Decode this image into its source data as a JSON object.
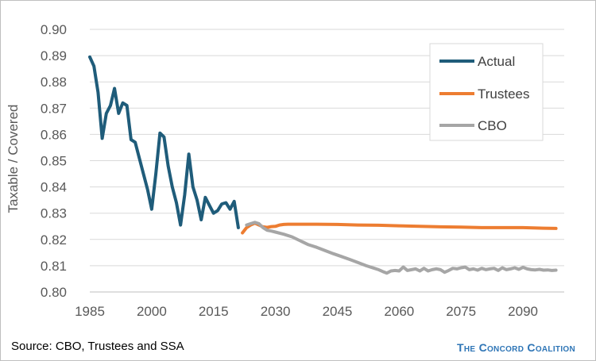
{
  "chart_data": {
    "type": "line",
    "title": "",
    "ylabel": "Taxable / Covered",
    "xlabel": "",
    "ylim": [
      0.8,
      0.9
    ],
    "xlim": [
      1985,
      2100
    ],
    "x_ticks": [
      1985,
      2000,
      2015,
      2030,
      2045,
      2060,
      2075,
      2090
    ],
    "y_ticks": [
      "0.80",
      "0.81",
      "0.82",
      "0.83",
      "0.84",
      "0.85",
      "0.86",
      "0.87",
      "0.88",
      "0.89",
      "0.90"
    ],
    "grid": "horizontal",
    "legend_position": "top-right",
    "series": [
      {
        "name": "Actual",
        "color": "#1f5c7a",
        "x": [
          1985,
          1986,
          1987,
          1988,
          1989,
          1990,
          1991,
          1992,
          1993,
          1994,
          1995,
          1996,
          1997,
          1998,
          1999,
          2000,
          2001,
          2002,
          2003,
          2004,
          2005,
          2006,
          2007,
          2008,
          2009,
          2010,
          2011,
          2012,
          2013,
          2014,
          2015,
          2016,
          2017,
          2018,
          2019,
          2020,
          2021
        ],
        "y": [
          0.8895,
          0.886,
          0.876,
          0.8585,
          0.868,
          0.871,
          0.8775,
          0.868,
          0.872,
          0.871,
          0.858,
          0.857,
          0.851,
          0.845,
          0.839,
          0.8315,
          0.845,
          0.8605,
          0.859,
          0.848,
          0.84,
          0.834,
          0.8255,
          0.837,
          0.8525,
          0.84,
          0.835,
          0.8275,
          0.836,
          0.833,
          0.83,
          0.831,
          0.8335,
          0.834,
          0.8315,
          0.8345,
          0.8245
        ]
      },
      {
        "name": "Trustees",
        "color": "#ed7d31",
        "x": [
          2022,
          2023,
          2024,
          2025,
          2026,
          2027,
          2028,
          2029,
          2030,
          2031,
          2032,
          2033,
          2035,
          2040,
          2045,
          2050,
          2055,
          2060,
          2065,
          2070,
          2075,
          2080,
          2085,
          2090,
          2095,
          2098
        ],
        "y": [
          0.8225,
          0.8245,
          0.8255,
          0.8262,
          0.8255,
          0.8248,
          0.8246,
          0.8249,
          0.825,
          0.8255,
          0.8257,
          0.8258,
          0.8258,
          0.8258,
          0.8257,
          0.8255,
          0.8254,
          0.8252,
          0.825,
          0.8248,
          0.8247,
          0.8245,
          0.8245,
          0.8245,
          0.8243,
          0.8242
        ]
      },
      {
        "name": "CBO",
        "color": "#a6a6a6",
        "x": [
          2023,
          2024,
          2025,
          2026,
          2027,
          2028,
          2029,
          2030,
          2032,
          2034,
          2036,
          2038,
          2040,
          2042,
          2044,
          2046,
          2048,
          2050,
          2052,
          2054,
          2055,
          2056,
          2057,
          2058,
          2059,
          2060,
          2061,
          2062,
          2063,
          2064,
          2065,
          2066,
          2067,
          2068,
          2069,
          2070,
          2071,
          2072,
          2073,
          2074,
          2075,
          2076,
          2077,
          2078,
          2079,
          2080,
          2081,
          2082,
          2083,
          2084,
          2085,
          2086,
          2087,
          2088,
          2089,
          2090,
          2091,
          2092,
          2093,
          2094,
          2095,
          2096,
          2097,
          2098
        ],
        "y": [
          0.8255,
          0.826,
          0.8265,
          0.826,
          0.8245,
          0.8235,
          0.8232,
          0.8228,
          0.822,
          0.821,
          0.8195,
          0.818,
          0.817,
          0.8158,
          0.8146,
          0.8135,
          0.8124,
          0.8112,
          0.81,
          0.809,
          0.8085,
          0.8078,
          0.8072,
          0.808,
          0.8082,
          0.808,
          0.8095,
          0.8082,
          0.8085,
          0.8088,
          0.808,
          0.809,
          0.808,
          0.8085,
          0.8088,
          0.8085,
          0.8075,
          0.8082,
          0.809,
          0.8088,
          0.8092,
          0.8095,
          0.8085,
          0.8088,
          0.8083,
          0.809,
          0.8085,
          0.8088,
          0.809,
          0.8082,
          0.8092,
          0.8085,
          0.8088,
          0.8092,
          0.8086,
          0.8094,
          0.8088,
          0.8085,
          0.8084,
          0.8086,
          0.8083,
          0.8084,
          0.8082,
          0.8083
        ]
      }
    ]
  },
  "footer": {
    "source": "Source: CBO, Trustees and SSA",
    "brand": "The Concord Coalition"
  }
}
